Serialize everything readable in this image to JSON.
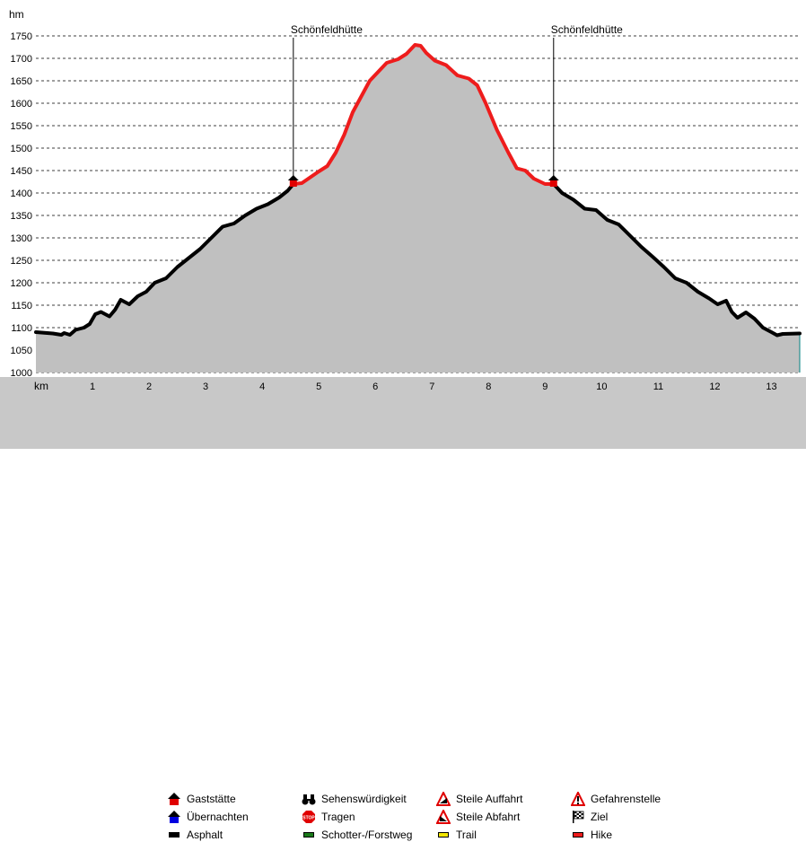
{
  "chart_data": {
    "type": "area",
    "ylabel": "hm",
    "xlabel": "km",
    "ylim": [
      1000,
      1750
    ],
    "xlim": [
      0,
      13.5
    ],
    "y_ticks": [
      1000,
      1050,
      1100,
      1150,
      1200,
      1250,
      1300,
      1350,
      1400,
      1450,
      1500,
      1550,
      1600,
      1650,
      1700,
      1750
    ],
    "x_ticks": [
      1,
      2,
      3,
      4,
      5,
      6,
      7,
      8,
      9,
      10,
      11,
      12,
      13
    ],
    "grid": "horizontal-dashed",
    "profile": [
      [
        0,
        1090
      ],
      [
        0.3,
        1087
      ],
      [
        0.45,
        1084
      ],
      [
        0.5,
        1088
      ],
      [
        0.6,
        1084
      ],
      [
        0.7,
        1095
      ],
      [
        0.85,
        1100
      ],
      [
        0.95,
        1108
      ],
      [
        1.05,
        1130
      ],
      [
        1.15,
        1135
      ],
      [
        1.3,
        1125
      ],
      [
        1.4,
        1140
      ],
      [
        1.5,
        1162
      ],
      [
        1.65,
        1152
      ],
      [
        1.8,
        1170
      ],
      [
        1.95,
        1180
      ],
      [
        2.1,
        1200
      ],
      [
        2.3,
        1210
      ],
      [
        2.5,
        1235
      ],
      [
        2.7,
        1255
      ],
      [
        2.9,
        1275
      ],
      [
        3.1,
        1300
      ],
      [
        3.3,
        1325
      ],
      [
        3.5,
        1332
      ],
      [
        3.7,
        1350
      ],
      [
        3.9,
        1365
      ],
      [
        4.1,
        1375
      ],
      [
        4.3,
        1390
      ],
      [
        4.45,
        1405
      ],
      [
        4.55,
        1420
      ],
      [
        4.7,
        1422
      ],
      [
        4.85,
        1435
      ],
      [
        5.0,
        1448
      ],
      [
        5.15,
        1460
      ],
      [
        5.3,
        1490
      ],
      [
        5.45,
        1530
      ],
      [
        5.6,
        1580
      ],
      [
        5.75,
        1615
      ],
      [
        5.9,
        1650
      ],
      [
        6.05,
        1670
      ],
      [
        6.2,
        1690
      ],
      [
        6.4,
        1698
      ],
      [
        6.55,
        1710
      ],
      [
        6.7,
        1730
      ],
      [
        6.8,
        1728
      ],
      [
        6.9,
        1712
      ],
      [
        7.05,
        1695
      ],
      [
        7.25,
        1685
      ],
      [
        7.45,
        1662
      ],
      [
        7.65,
        1655
      ],
      [
        7.8,
        1640
      ],
      [
        7.95,
        1600
      ],
      [
        8.15,
        1540
      ],
      [
        8.35,
        1490
      ],
      [
        8.5,
        1455
      ],
      [
        8.65,
        1450
      ],
      [
        8.8,
        1432
      ],
      [
        9.0,
        1420
      ],
      [
        9.15,
        1420
      ],
      [
        9.3,
        1400
      ],
      [
        9.5,
        1385
      ],
      [
        9.7,
        1365
      ],
      [
        9.9,
        1362
      ],
      [
        10.1,
        1340
      ],
      [
        10.3,
        1330
      ],
      [
        10.5,
        1305
      ],
      [
        10.7,
        1280
      ],
      [
        10.9,
        1258
      ],
      [
        11.1,
        1235
      ],
      [
        11.3,
        1210
      ],
      [
        11.5,
        1200
      ],
      [
        11.7,
        1180
      ],
      [
        11.9,
        1165
      ],
      [
        12.05,
        1152
      ],
      [
        12.2,
        1160
      ],
      [
        12.3,
        1135
      ],
      [
        12.4,
        1122
      ],
      [
        12.55,
        1134
      ],
      [
        12.7,
        1120
      ],
      [
        12.85,
        1100
      ],
      [
        13.0,
        1090
      ],
      [
        13.1,
        1083
      ],
      [
        13.2,
        1086
      ],
      [
        13.5,
        1087
      ]
    ],
    "series": [
      {
        "name": "Asphalt",
        "color": "#000000",
        "ranges": [
          [
            0,
            4.55
          ],
          [
            9.15,
            13.5
          ]
        ]
      },
      {
        "name": "Hike",
        "color": "#ee1c1c",
        "ranges": [
          [
            4.55,
            9.15
          ]
        ]
      }
    ],
    "annotations": [
      {
        "label": "Schönfeldhütte",
        "x": 4.55,
        "y": 1420,
        "type": "Gaststätte"
      },
      {
        "label": "Schönfeldhütte",
        "x": 9.15,
        "y": 1420,
        "type": "Gaststätte"
      }
    ]
  },
  "legend": {
    "items": [
      {
        "label": "Gaststätte",
        "icon": "gaststaette-icon"
      },
      {
        "label": "Sehenswürdigkeit",
        "icon": "binoculars-icon"
      },
      {
        "label": "Steile Auffahrt",
        "icon": "steep-up-icon"
      },
      {
        "label": "Gefahrenstelle",
        "icon": "danger-icon"
      },
      {
        "label": "Übernachten",
        "icon": "overnight-icon"
      },
      {
        "label": "Tragen",
        "icon": "stop-icon"
      },
      {
        "label": "Steile Abfahrt",
        "icon": "steep-down-icon"
      },
      {
        "label": "Ziel",
        "icon": "finish-flag-icon"
      },
      {
        "label": "Asphalt",
        "icon": "asphalt-swatch",
        "color": "#000000"
      },
      {
        "label": "Schotter-/Forstweg",
        "icon": "gravel-swatch",
        "color": "#1a7a1a"
      },
      {
        "label": "Trail",
        "icon": "trail-swatch",
        "color": "#f2e600"
      },
      {
        "label": "Hike",
        "icon": "hike-swatch",
        "color": "#ee1c1c"
      }
    ]
  },
  "colors": {
    "fill": "#c0c0c0",
    "axis_strip": "#c8c8c8",
    "end_line": "#008080",
    "marker_red": "#e00000"
  }
}
